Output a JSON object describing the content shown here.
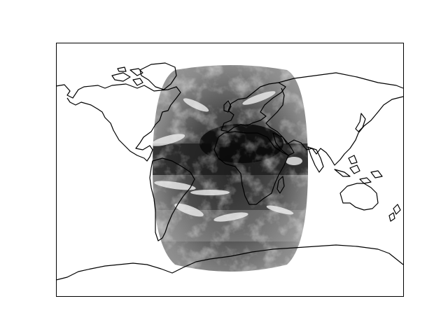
{
  "figure": {
    "background": "#ffffff",
    "map": {
      "projection": "plate-carree",
      "extent_lon": [
        -180,
        180
      ],
      "extent_lat": [
        -90,
        90
      ],
      "coastline_color": "#000000",
      "frame_color": "#000000"
    },
    "satellite_overlay": {
      "description_type": "geostationary full-disk infrared image, grayscale",
      "sub_satellite_lon": 0,
      "coverage_lon": [
        -80,
        80
      ],
      "coverage_lat": [
        -80,
        80
      ],
      "tone_dark": "#0a0a0a",
      "tone_mid": "#7a7a7a",
      "tone_light": "#e8e8e8"
    }
  }
}
